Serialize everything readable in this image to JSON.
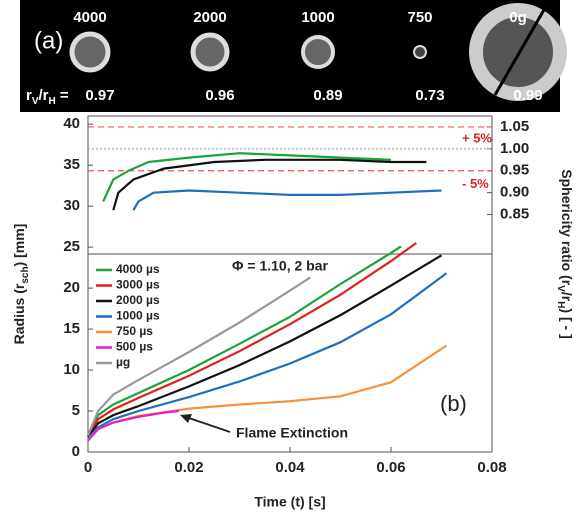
{
  "panel_a": {
    "label": "(a)",
    "conditions": [
      "4000",
      "2000",
      "1000",
      "750",
      "0g"
    ],
    "ratio_label": [
      "r",
      "V",
      "/r",
      "H",
      " ="
    ],
    "ratios": [
      "0.97",
      "0.96",
      "0.89",
      "0.73",
      "0.99"
    ]
  },
  "chart_data": {
    "type": "line",
    "xlabel": "Time (t) [s]",
    "ylabel": [
      "Radius (r",
      "sch",
      ") [mm]"
    ],
    "y2label": [
      "Sphericity ratio (r",
      "V",
      "/r",
      "H",
      ") [ - ]"
    ],
    "condition_label": "Φ = 1.10, 2 bar",
    "panel_label": "(b)",
    "extinction_label": "Flame Extinction",
    "plus_label": "+ 5%",
    "minus_label": "- 5%",
    "xlim": [
      0,
      0.08
    ],
    "xticks": [
      0,
      0.02,
      0.04,
      0.06,
      0.08
    ],
    "ylim": [
      0,
      41
    ],
    "yticks": [
      0,
      5,
      10,
      15,
      20,
      25,
      30,
      35,
      40
    ],
    "y2lim": [
      0.76,
      1.075
    ],
    "y2ticks": [
      0.85,
      {
        "value": 0.9,
        "label": "0.90"
      },
      0.95,
      {
        "value": 1,
        "label": "1.00"
      },
      1.05
    ],
    "ref_lines": [
      {
        "value": 1.05,
        "color": "#f05050"
      },
      {
        "value": 1,
        "color": "#aaaaaa"
      },
      {
        "value": 0.95,
        "color": "#f05050"
      }
    ],
    "series": [
      {
        "name": "4000 µs",
        "color": "#1aa33a",
        "x": [
          0,
          0.002,
          0.005,
          0.01,
          0.02,
          0.03,
          0.04,
          0.05,
          0.06,
          0.062
        ],
        "values": [
          2,
          4.5,
          5.8,
          7.2,
          10,
          13.2,
          16.5,
          20.5,
          24.3,
          25.1
        ]
      },
      {
        "name": "3000 µs",
        "color": "#e0201c",
        "x": [
          0,
          0.002,
          0.005,
          0.01,
          0.02,
          0.03,
          0.04,
          0.05,
          0.06,
          0.065
        ],
        "values": [
          2,
          4,
          5.2,
          6.6,
          9.3,
          12.3,
          15.6,
          19.2,
          23.3,
          25.5
        ]
      },
      {
        "name": "2000 µs",
        "color": "#111111",
        "x": [
          0,
          0.002,
          0.005,
          0.01,
          0.02,
          0.03,
          0.04,
          0.05,
          0.06,
          0.07
        ],
        "values": [
          1.8,
          3.5,
          4.5,
          5.6,
          8,
          10.6,
          13.5,
          16.7,
          20.3,
          24
        ]
      },
      {
        "name": "1000 µs",
        "color": "#1f6fc1",
        "x": [
          0,
          0.002,
          0.005,
          0.01,
          0.02,
          0.03,
          0.04,
          0.05,
          0.06,
          0.071
        ],
        "values": [
          1.6,
          3,
          4,
          5,
          6.7,
          8.6,
          10.8,
          13.4,
          16.8,
          21.8
        ]
      },
      {
        "name": "750 µs",
        "color": "#f5913a",
        "x": [
          0,
          0.002,
          0.005,
          0.01,
          0.02,
          0.03,
          0.04,
          0.05,
          0.06,
          0.071
        ],
        "values": [
          1.5,
          2.8,
          3.6,
          4.4,
          5.3,
          5.8,
          6.2,
          6.8,
          8.5,
          13
        ]
      },
      {
        "name": "500 µs",
        "color": "#e020d0",
        "x": [
          0,
          0.002,
          0.005,
          0.01,
          0.015,
          0.018
        ],
        "values": [
          1.4,
          2.8,
          3.6,
          4.3,
          4.8,
          5
        ]
      },
      {
        "name": "µg",
        "color": "#999999",
        "x": [
          0,
          0.002,
          0.005,
          0.01,
          0.02,
          0.03,
          0.04,
          0.044
        ],
        "values": [
          2,
          5,
          7,
          8.8,
          12.2,
          15.8,
          19.7,
          21.3
        ]
      },
      {
        "axis": "y2",
        "color": "#1aa33a",
        "x": [
          0.003,
          0.005,
          0.008,
          0.012,
          0.02,
          0.03,
          0.04,
          0.05,
          0.06
        ],
        "values": [
          0.88,
          0.93,
          0.95,
          0.97,
          0.98,
          0.99,
          0.985,
          0.98,
          0.975
        ]
      },
      {
        "axis": "y2",
        "color": "#111111",
        "x": [
          0.005,
          0.006,
          0.009,
          0.015,
          0.025,
          0.035,
          0.05,
          0.06,
          0.067
        ],
        "values": [
          0.86,
          0.9,
          0.93,
          0.955,
          0.97,
          0.975,
          0.975,
          0.97,
          0.97
        ]
      },
      {
        "axis": "y2",
        "color": "#1f6fc1",
        "x": [
          0.009,
          0.01,
          0.013,
          0.02,
          0.03,
          0.04,
          0.05,
          0.06,
          0.07
        ],
        "values": [
          0.86,
          0.88,
          0.9,
          0.905,
          0.9,
          0.895,
          0.895,
          0.9,
          0.905
        ]
      }
    ]
  }
}
